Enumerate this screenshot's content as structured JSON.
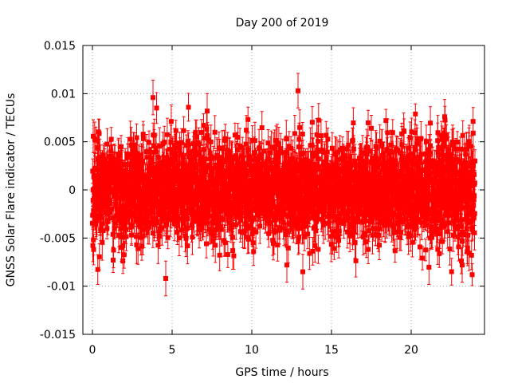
{
  "chart_data": {
    "type": "scatter",
    "title": "Day 200 of 2019",
    "xlabel": "GPS time / hours",
    "ylabel": "GNSS Solar Flare indicator / TECUs",
    "xlim": [
      -0.6,
      24.6
    ],
    "ylim": [
      -0.015,
      0.015
    ],
    "x_ticks": [
      0,
      5,
      10,
      15,
      20
    ],
    "x_tick_labels": [
      "0",
      "5",
      "10",
      "15",
      "20"
    ],
    "y_ticks": [
      -0.015,
      -0.01,
      -0.005,
      0,
      0.005,
      0.01,
      0.015
    ],
    "y_tick_labels": [
      "-0.015",
      "-0.01",
      "-0.005",
      "0",
      "0.005",
      "0.01",
      "0.015"
    ],
    "grid": true,
    "series": [
      {
        "name": "solar flare indicator",
        "color": "#ff0000",
        "marker": "square",
        "errorbars": true,
        "x_start": 0.0,
        "x_end": 24.0,
        "n_points": 2880,
        "mean": 0.0,
        "stddev": 0.0026,
        "typical_error": 0.0015,
        "notable_points": [
          {
            "x": 3.8,
            "y": 0.0096
          },
          {
            "x": 4.6,
            "y": -0.0092
          },
          {
            "x": 7.2,
            "y": 0.0082
          },
          {
            "x": 12.2,
            "y": -0.0078
          },
          {
            "x": 12.9,
            "y": 0.0103
          },
          {
            "x": 13.2,
            "y": -0.0085
          },
          {
            "x": 22.1,
            "y": 0.0076
          },
          {
            "x": 23.2,
            "y": -0.0078
          }
        ]
      }
    ]
  },
  "colors": {
    "data": "#ff0000",
    "axis": "#000000",
    "grid": "#a0a0a0"
  }
}
